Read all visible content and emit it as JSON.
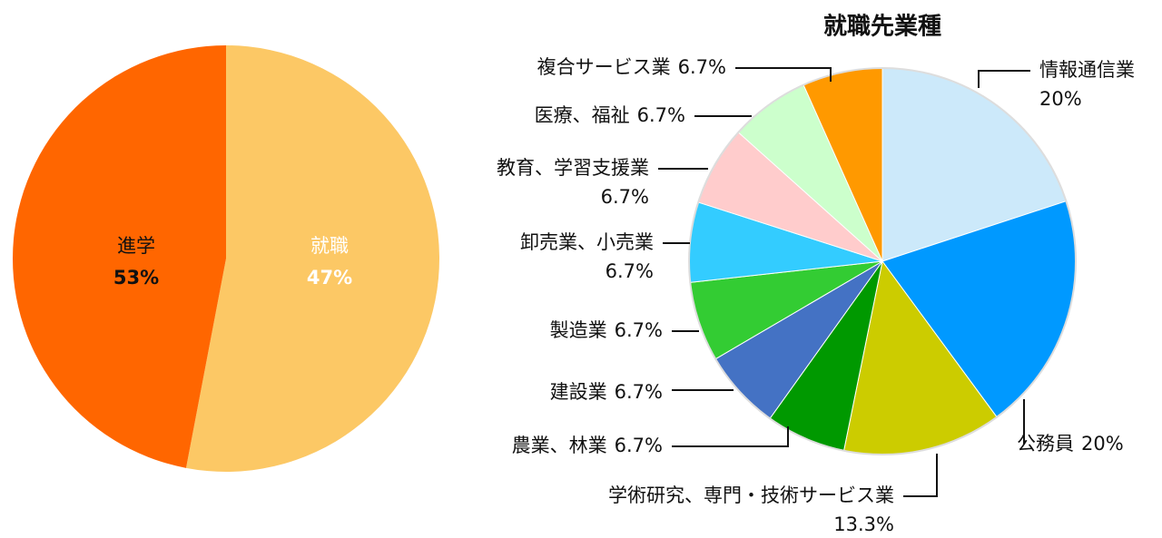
{
  "chart_data": [
    {
      "type": "pie",
      "categories": [
        "進学",
        "就職"
      ],
      "values": [
        53,
        47
      ],
      "value_labels": [
        "53%",
        "47%"
      ],
      "colors": [
        "#fcc865",
        "#ff6600"
      ]
    },
    {
      "type": "pie",
      "title": "就職先業種",
      "categories": [
        "情報通信業",
        "公務員",
        "学術研究、専門・技術サービス業",
        "農業、林業",
        "建設業",
        "製造業",
        "卸売業、小売業",
        "教育、学習支援業",
        "医療、福祉",
        "複合サービス業"
      ],
      "values": [
        20,
        20,
        13.3,
        6.7,
        6.7,
        6.7,
        6.7,
        6.7,
        6.7,
        6.7
      ],
      "value_labels": [
        "20%",
        "20%",
        "13.3%",
        "6.7%",
        "6.7%",
        "6.7%",
        "6.7%",
        "6.7%",
        "6.7%",
        "6.7%"
      ],
      "colors": [
        "#cce9fa",
        "#0099ff",
        "#cccc00",
        "#009900",
        "#4472c4",
        "#33cc33",
        "#33ccff",
        "#ffcccc",
        "#ccffcc",
        "#ff9900"
      ]
    }
  ]
}
